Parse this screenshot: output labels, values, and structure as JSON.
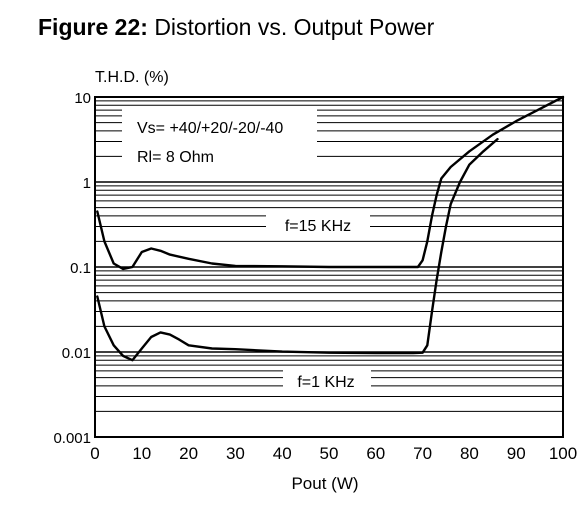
{
  "figure": {
    "label": "Figure 22:",
    "title": "Distortion vs. Output Power"
  },
  "chart_data": {
    "type": "line",
    "ylabel": "T.H.D. (%)",
    "xlabel": "Pout (W)",
    "x_scale": "linear",
    "y_scale": "log",
    "xlim": [
      0,
      100
    ],
    "ylim": [
      0.001,
      10
    ],
    "x_ticks": [
      "0",
      "10",
      "20",
      "30",
      "40",
      "50",
      "60",
      "70",
      "80",
      "90",
      "100"
    ],
    "y_ticks": [
      "0.001",
      "0.01",
      "0.1",
      "1",
      "10"
    ],
    "grid": true,
    "annotations": {
      "supply": "Vs= +40/+20/-20/-40",
      "load": "Rl= 8 Ohm"
    },
    "series": [
      {
        "name": "f=15 KHz",
        "points": [
          [
            0.5,
            0.45
          ],
          [
            2,
            0.2
          ],
          [
            4,
            0.11
          ],
          [
            6,
            0.095
          ],
          [
            8,
            0.1
          ],
          [
            10,
            0.15
          ],
          [
            12,
            0.165
          ],
          [
            14,
            0.155
          ],
          [
            16,
            0.14
          ],
          [
            20,
            0.125
          ],
          [
            25,
            0.11
          ],
          [
            30,
            0.103
          ],
          [
            40,
            0.102
          ],
          [
            50,
            0.1
          ],
          [
            60,
            0.1
          ],
          [
            66,
            0.1
          ],
          [
            69,
            0.1
          ],
          [
            70,
            0.12
          ],
          [
            71,
            0.2
          ],
          [
            72,
            0.4
          ],
          [
            73,
            0.7
          ],
          [
            74,
            1.1
          ],
          [
            76,
            1.5
          ],
          [
            80,
            2.3
          ],
          [
            85,
            3.6
          ],
          [
            90,
            5.2
          ],
          [
            95,
            7.2
          ],
          [
            100,
            10
          ]
        ]
      },
      {
        "name": "f=1 KHz",
        "points": [
          [
            0.5,
            0.045
          ],
          [
            2,
            0.02
          ],
          [
            4,
            0.012
          ],
          [
            6,
            0.009
          ],
          [
            8,
            0.008
          ],
          [
            10,
            0.011
          ],
          [
            12,
            0.015
          ],
          [
            14,
            0.017
          ],
          [
            16,
            0.016
          ],
          [
            18,
            0.014
          ],
          [
            20,
            0.012
          ],
          [
            25,
            0.011
          ],
          [
            30,
            0.0108
          ],
          [
            40,
            0.0101
          ],
          [
            50,
            0.0098
          ],
          [
            60,
            0.0097
          ],
          [
            68,
            0.0097
          ],
          [
            70,
            0.0098
          ],
          [
            71,
            0.012
          ],
          [
            72,
            0.03
          ],
          [
            73,
            0.07
          ],
          [
            74,
            0.15
          ],
          [
            75,
            0.3
          ],
          [
            76,
            0.55
          ],
          [
            78,
            1.0
          ],
          [
            80,
            1.6
          ],
          [
            83,
            2.3
          ],
          [
            86,
            3.2
          ]
        ]
      }
    ],
    "series_labels": [
      "f=15 KHz",
      "f=1 KHz"
    ]
  }
}
